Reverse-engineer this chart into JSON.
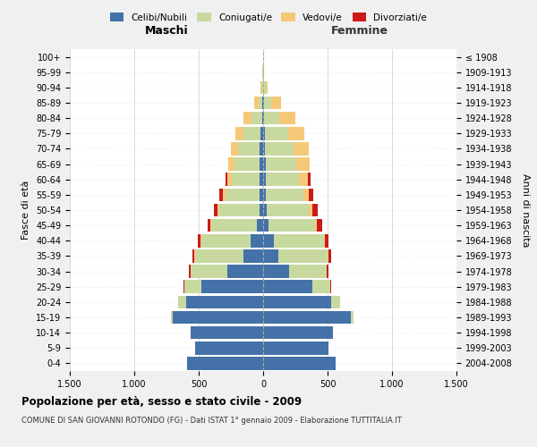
{
  "age_groups": [
    "0-4",
    "5-9",
    "10-14",
    "15-19",
    "20-24",
    "25-29",
    "30-34",
    "35-39",
    "40-44",
    "45-49",
    "50-54",
    "55-59",
    "60-64",
    "65-69",
    "70-74",
    "75-79",
    "80-84",
    "85-89",
    "90-94",
    "95-99",
    "100+"
  ],
  "birth_years": [
    "2004-2008",
    "1999-2003",
    "1994-1998",
    "1989-1993",
    "1984-1988",
    "1979-1983",
    "1974-1978",
    "1969-1973",
    "1964-1968",
    "1959-1963",
    "1954-1958",
    "1949-1953",
    "1944-1948",
    "1939-1943",
    "1934-1938",
    "1929-1933",
    "1924-1928",
    "1919-1923",
    "1914-1918",
    "1909-1913",
    "≤ 1908"
  ],
  "colors": {
    "celibe": "#4472a8",
    "coniugato": "#c8d9a0",
    "vedovo": "#f5c878",
    "divorziato": "#cc1a1a"
  },
  "maschi": {
    "celibe": [
      590,
      530,
      560,
      700,
      600,
      480,
      280,
      150,
      100,
      50,
      25,
      25,
      25,
      25,
      25,
      20,
      10,
      5,
      3,
      2,
      0
    ],
    "coniugato": [
      0,
      0,
      0,
      15,
      60,
      130,
      280,
      380,
      380,
      350,
      320,
      270,
      220,
      200,
      170,
      130,
      80,
      30,
      8,
      2,
      0
    ],
    "vedovo": [
      0,
      0,
      0,
      0,
      0,
      2,
      2,
      3,
      5,
      8,
      12,
      20,
      30,
      45,
      55,
      65,
      60,
      35,
      10,
      2,
      0
    ],
    "divorziato": [
      0,
      0,
      0,
      0,
      2,
      5,
      12,
      18,
      20,
      25,
      25,
      22,
      15,
      3,
      2,
      0,
      0,
      0,
      0,
      0,
      0
    ]
  },
  "femmine": {
    "nubile": [
      560,
      510,
      540,
      680,
      530,
      380,
      200,
      120,
      80,
      40,
      25,
      22,
      20,
      18,
      15,
      12,
      8,
      5,
      3,
      2,
      0
    ],
    "coniugata": [
      0,
      0,
      0,
      18,
      65,
      140,
      290,
      380,
      390,
      360,
      330,
      290,
      260,
      240,
      220,
      180,
      120,
      55,
      15,
      2,
      0
    ],
    "vedova": [
      0,
      0,
      0,
      0,
      2,
      3,
      4,
      6,
      10,
      18,
      30,
      45,
      70,
      100,
      120,
      130,
      120,
      80,
      20,
      5,
      2
    ],
    "divorziata": [
      0,
      0,
      0,
      0,
      2,
      6,
      14,
      22,
      30,
      40,
      38,
      30,
      20,
      5,
      2,
      0,
      0,
      0,
      0,
      0,
      0
    ]
  },
  "xlim": 1500,
  "xticks": [
    -1500,
    -1000,
    -500,
    0,
    500,
    1000,
    1500
  ],
  "xticklabels": [
    "1.500",
    "1.000",
    "500",
    "0",
    "500",
    "1.000",
    "1.500"
  ],
  "title": "Popolazione per età, sesso e stato civile - 2009",
  "subtitle": "COMUNE DI SAN GIOVANNI ROTONDO (FG) - Dati ISTAT 1° gennaio 2009 - Elaborazione TUTTITALIA.IT",
  "ylabel_left": "Fasce di età",
  "ylabel_right": "Anni di nascita",
  "maschi_label": "Maschi",
  "femmine_label": "Femmine",
  "bg_color": "#f0f0f0",
  "plot_bg_color": "#ffffff",
  "legend_labels": [
    "Celibi/Nubili",
    "Coniugati/e",
    "Vedovi/e",
    "Divorziati/e"
  ]
}
